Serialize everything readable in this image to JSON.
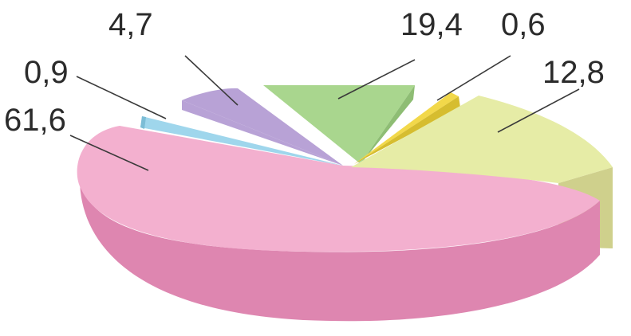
{
  "chart_data": {
    "type": "pie",
    "style": "3d-exploded",
    "slices": [
      {
        "label": "61,6",
        "value": 61.6,
        "color": "#f3b0cf",
        "side": "#de86b0"
      },
      {
        "label": "0,9",
        "value": 0.9,
        "color": "#9fd6ec",
        "side": "#7cbdd6"
      },
      {
        "label": "4,7",
        "value": 4.7,
        "color": "#b8a2d6",
        "side": "#9a86bd"
      },
      {
        "label": "19,4",
        "value": 19.4,
        "color": "#a9d68e",
        "side": "#8ebd74"
      },
      {
        "label": "0,6",
        "value": 0.6,
        "color": "#f2d84a",
        "side": "#d6bd2f"
      },
      {
        "label": "12,8",
        "value": 12.8,
        "color": "#e6eca6",
        "side": "#cfd08c"
      }
    ]
  }
}
